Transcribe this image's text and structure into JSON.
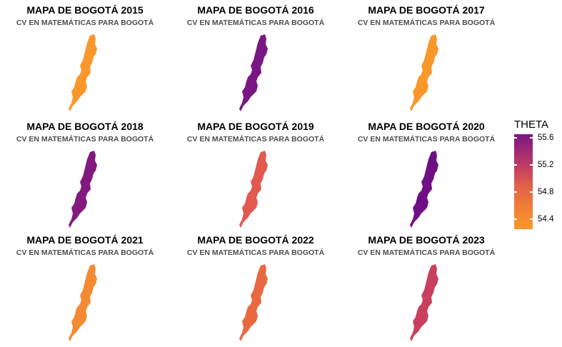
{
  "panels": [
    {
      "title": "MAPA DE BOGOTÁ 2015",
      "subtitle": "CV EN MATEMÁTICAS PARA BOGOTÁ",
      "theta": 54.27,
      "color": "#f9972b"
    },
    {
      "title": "MAPA DE BOGOTÁ 2016",
      "subtitle": "CV EN MATEMÁTICAS PARA BOGOTÁ",
      "theta": 55.6,
      "color": "#7a1683"
    },
    {
      "title": "MAPA DE BOGOTÁ 2017",
      "subtitle": "CV EN MATEMÁTICAS PARA BOGOTÁ",
      "theta": 54.27,
      "color": "#f9972b"
    },
    {
      "title": "MAPA DE BOGOTÁ 2018",
      "subtitle": "CV EN MATEMÁTICAS PARA BOGOTÁ",
      "theta": 55.55,
      "color": "#82197f"
    },
    {
      "title": "MAPA DE BOGOTÁ 2019",
      "subtitle": "CV EN MATEMÁTICAS PARA BOGOTÁ",
      "theta": 54.85,
      "color": "#e1594f"
    },
    {
      "title": "MAPA DE BOGOTÁ 2020",
      "subtitle": "CV EN MATEMÁTICAS PARA BOGOTÁ",
      "theta": 55.62,
      "color": "#6f0f84"
    },
    {
      "title": "MAPA DE BOGOTÁ 2021",
      "subtitle": "CV EN MATEMÁTICAS PARA BOGOTÁ",
      "theta": 54.45,
      "color": "#f48a32"
    },
    {
      "title": "MAPA DE BOGOTÁ 2022",
      "subtitle": "CV EN MATEMÁTICAS PARA BOGOTÁ",
      "theta": 54.7,
      "color": "#e8693f"
    },
    {
      "title": "MAPA DE BOGOTÁ 2023",
      "subtitle": "CV EN MATEMÁTICAS PARA BOGOTÁ",
      "theta": 55.1,
      "color": "#c8405d"
    }
  ],
  "legend": {
    "title": "THETA",
    "range": [
      54.25,
      55.65
    ],
    "ticks": [
      {
        "value": 54.4,
        "label": "54.4"
      },
      {
        "value": 54.8,
        "label": "54.8"
      },
      {
        "value": 55.2,
        "label": "55.2"
      },
      {
        "value": 55.6,
        "label": "55.6"
      }
    ]
  }
}
